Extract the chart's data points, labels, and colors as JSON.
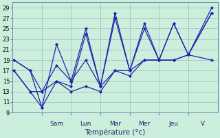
{
  "background_color": "#cceedd",
  "grid_color": "#99bbbb",
  "line_color": "#2222aa",
  "ylim": [
    9,
    30
  ],
  "yticks": [
    9,
    11,
    13,
    15,
    17,
    19,
    21,
    23,
    25,
    27,
    29
  ],
  "xlabel": "Température (°c)",
  "day_labels": [
    "Sam",
    "Lun",
    "Mar",
    "Mer",
    "Jeu",
    "V"
  ],
  "day_sep_x": [
    1,
    2,
    3,
    4,
    5,
    6
  ],
  "xlim": [
    0,
    7.0
  ],
  "lines": [
    {
      "x": [
        0.05,
        0.6,
        1.0,
        1.5,
        2.0,
        2.5,
        3.0,
        3.5,
        4.0,
        4.5,
        5.0,
        5.5,
        6.0,
        6.8
      ],
      "y": [
        19,
        17,
        10,
        22,
        15,
        25,
        14,
        28,
        17,
        26,
        19,
        26,
        20,
        29
      ]
    },
    {
      "x": [
        0.05,
        0.6,
        1.0,
        1.5,
        2.0,
        2.5,
        3.0,
        3.5,
        4.0,
        4.5,
        5.0,
        5.5,
        6.0,
        6.8
      ],
      "y": [
        19,
        17,
        13,
        18,
        15,
        19,
        14,
        17,
        17,
        19,
        19,
        19,
        20,
        28
      ]
    },
    {
      "x": [
        0.05,
        0.6,
        1.0,
        1.5,
        2.0,
        2.5,
        3.0,
        3.5,
        4.0,
        4.5,
        5.0,
        5.5,
        6.0,
        6.8
      ],
      "y": [
        17,
        13,
        10,
        15,
        13,
        14,
        13,
        17,
        16,
        19,
        19,
        19,
        20,
        19
      ]
    },
    {
      "x": [
        0.05,
        0.6,
        1.0,
        1.5,
        2.0,
        2.5,
        3.0,
        3.5,
        4.0,
        4.5,
        5.0,
        5.5,
        6.0,
        6.8
      ],
      "y": [
        17,
        13,
        13,
        15,
        14,
        24,
        14,
        27,
        17,
        25,
        19,
        26,
        20,
        28
      ]
    }
  ]
}
